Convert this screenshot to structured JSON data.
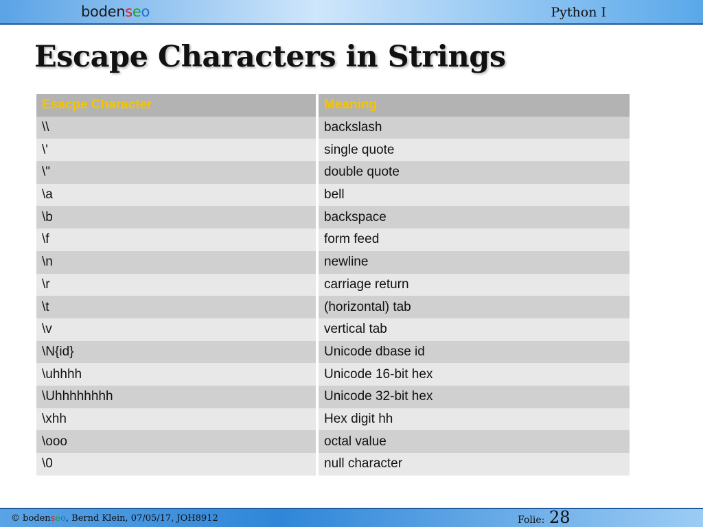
{
  "header": {
    "logo": {
      "part1": "boden",
      "part2": "s",
      "part3": "e",
      "part4": "o"
    },
    "course": "Python I"
  },
  "title": "Escape Characters in Strings",
  "table": {
    "headers": [
      "Esacpe Character",
      "Meaning"
    ],
    "rows": [
      {
        "char": "\\\\",
        "meaning": "backslash"
      },
      {
        "char": "\\'",
        "meaning": "single quote"
      },
      {
        "char": "\\\"",
        "meaning": "double quote"
      },
      {
        "char": "\\a",
        "meaning": "bell"
      },
      {
        "char": "\\b",
        "meaning": "backspace"
      },
      {
        "char": "\\f",
        "meaning": "form feed"
      },
      {
        "char": "\\n",
        "meaning": "newline"
      },
      {
        "char": "\\r",
        "meaning": "carriage return"
      },
      {
        "char": "\\t",
        "meaning": "(horizontal) tab"
      },
      {
        "char": "\\v",
        "meaning": "vertical tab"
      },
      {
        "char": "\\N{id}",
        "meaning": "Unicode dbase id"
      },
      {
        "char": "\\uhhhh",
        "meaning": "Unicode 16-bit hex"
      },
      {
        "char": "\\Uhhhhhhhh",
        "meaning": "Unicode 32-bit hex"
      },
      {
        "char": "\\xhh",
        "meaning": "Hex digit hh"
      },
      {
        "char": "\\ooo",
        "meaning": "octal value"
      },
      {
        "char": "\\0",
        "meaning": "null character"
      }
    ]
  },
  "footer": {
    "copyright": "©",
    "brand": {
      "part1": "boden",
      "part2": "s",
      "part3": "e",
      "part4": "o"
    },
    "credit": ", Bernd Klein, 07/05/17, JOH8912",
    "slide_label": "Folie:",
    "slide_number": "28"
  },
  "colors": {
    "header_text": "#f5c400",
    "row_dark": "#d0d0d0",
    "row_light": "#e8e8e8",
    "bar_blue": "#2f86d8"
  }
}
